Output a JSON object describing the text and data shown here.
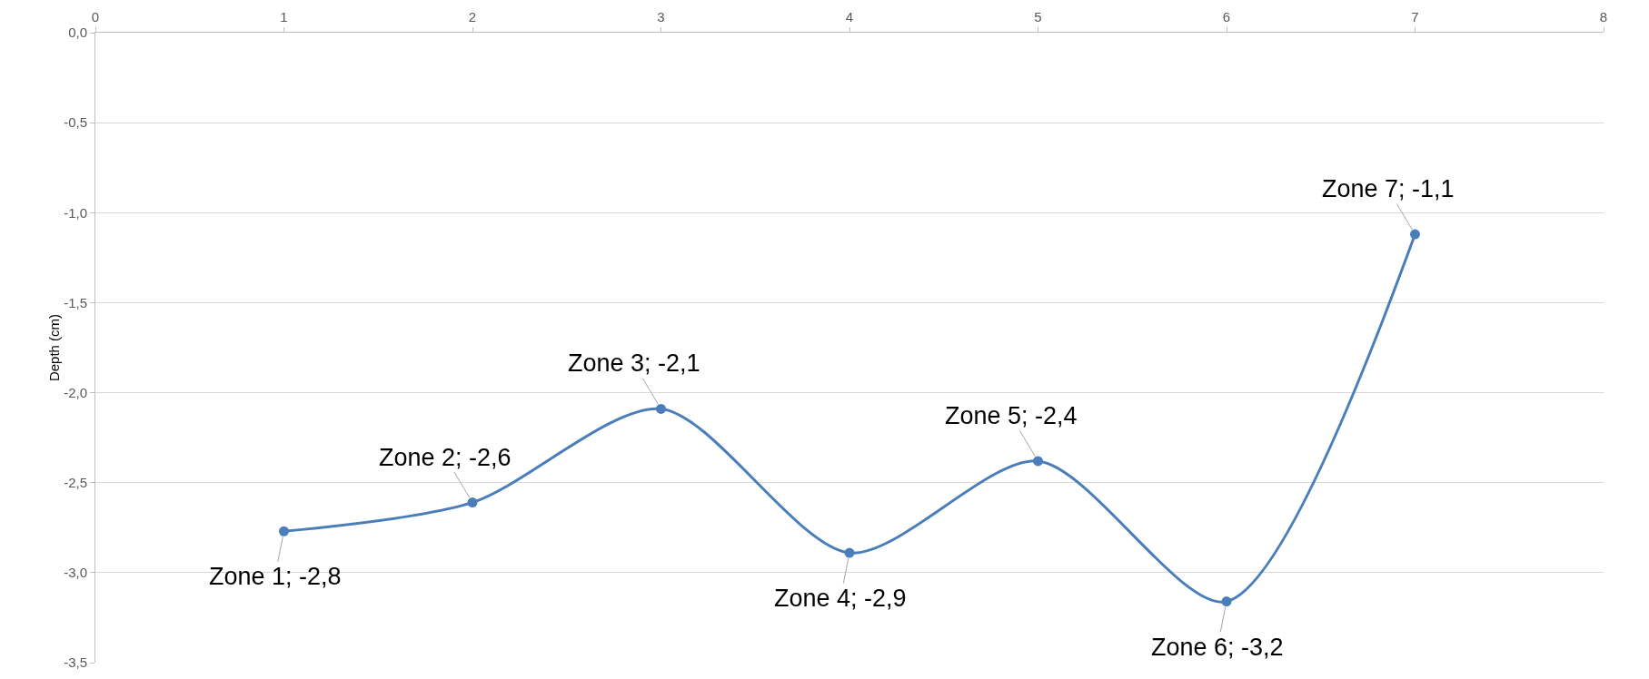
{
  "chart_data": {
    "type": "line",
    "ylabel": "Depth (cm)",
    "x": [
      1,
      2,
      3,
      4,
      5,
      6,
      7
    ],
    "series": [
      {
        "color": "#4a7ebb",
        "values": [
          -2.77,
          -2.61,
          -2.09,
          -2.89,
          -2.38,
          -3.16,
          -1.12
        ]
      }
    ],
    "xlim": [
      0,
      8
    ],
    "xticks": [
      0,
      1,
      2,
      3,
      4,
      5,
      6,
      7,
      8
    ],
    "ylim": [
      -3.5,
      0
    ],
    "yticks": [
      {
        "value": 0,
        "label": "0,0"
      },
      {
        "value": -0.5,
        "label": "-0,5"
      },
      {
        "value": -1,
        "label": "-1,0"
      },
      {
        "value": -1.5,
        "label": "-1,5"
      },
      {
        "value": -2,
        "label": "-2,0"
      },
      {
        "value": -2.5,
        "label": "-2,5"
      },
      {
        "value": -3,
        "label": "-3,0"
      },
      {
        "value": -3.5,
        "label": "-3,5"
      }
    ],
    "grid": "y",
    "marker": "circle",
    "line_style": "solid",
    "annotations": [
      {
        "text": "Zone 1; -2,8",
        "x": 1,
        "y": -2.77
      },
      {
        "text": "Zone 2; -2,6",
        "x": 2,
        "y": -2.61
      },
      {
        "text": "Zone 3; -2,1",
        "x": 3,
        "y": -2.09
      },
      {
        "text": "Zone 4; -2,9",
        "x": 4,
        "y": -2.89
      },
      {
        "text": "Zone 5; -2,4",
        "x": 5,
        "y": -2.38
      },
      {
        "text": "Zone 6; -3,2",
        "x": 6,
        "y": -3.16
      },
      {
        "text": "Zone 7; -1,1",
        "x": 7,
        "y": -1.12
      }
    ]
  }
}
